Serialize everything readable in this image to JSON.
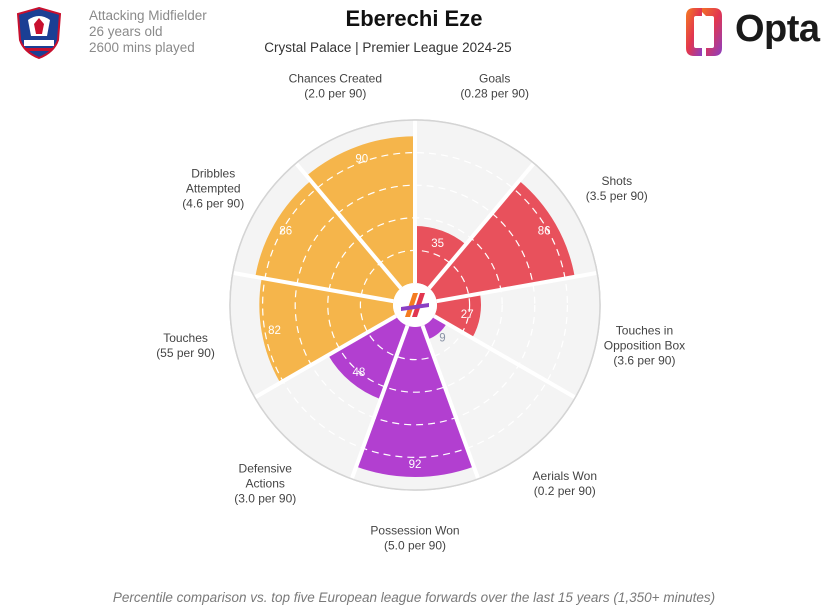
{
  "player": {
    "name": "Eberechi Eze",
    "position": "Attacking Midfielder",
    "age": "26 years old",
    "minutes": "2600 mins played",
    "subtitle": "Crystal Palace | Premier League 2024-25"
  },
  "brand": {
    "name": "Opta"
  },
  "footnote": "Percentile comparison vs. top five European league forwards over the last 15 years (1,350+ minutes)",
  "colors": {
    "attacking": "#e8515c",
    "possession": "#b23fd0",
    "creation": "#f5b54b",
    "low_value": "#8a93a6"
  },
  "chart_data": {
    "type": "polar-bar",
    "title": "Eberechi Eze",
    "rmax": 100,
    "rings": [
      20,
      40,
      60,
      80,
      100
    ],
    "categories": [
      {
        "line1": "Goals",
        "line2": "(0.28 per 90)",
        "value": 35,
        "group": "attacking"
      },
      {
        "line1": "Shots",
        "line2": "(3.5 per 90)",
        "value": 86,
        "group": "attacking"
      },
      {
        "line1": "Touches in",
        "line1b": "Opposition Box",
        "line2": "(3.6 per 90)",
        "value": 27,
        "group": "attacking"
      },
      {
        "line1": "Aerials Won",
        "line2": "(0.2 per 90)",
        "value": 9,
        "group": "possession"
      },
      {
        "line1": "Possession Won",
        "line2": "(5.0 per 90)",
        "value": 92,
        "group": "possession"
      },
      {
        "line1": "Defensive",
        "line1b": "Actions",
        "line2": "(3.0 per 90)",
        "value": 48,
        "group": "possession"
      },
      {
        "line1": "Touches",
        "line2": "(55 per 90)",
        "value": 82,
        "group": "creation"
      },
      {
        "line1": "Dribbles",
        "line1b": "Attempted",
        "line2": "(4.6 per 90)",
        "value": 86,
        "group": "creation"
      },
      {
        "line1": "Chances Created",
        "line2": "(2.0 per 90)",
        "value": 90,
        "group": "creation"
      }
    ]
  }
}
